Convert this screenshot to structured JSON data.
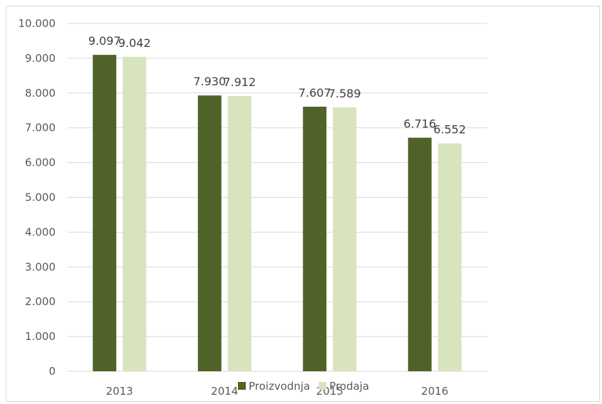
{
  "chart_data": {
    "type": "bar",
    "categories": [
      "2013",
      "2014",
      "2015",
      "2016"
    ],
    "series": [
      {
        "name": "Proizvodnja",
        "values": [
          9097,
          7930,
          7607,
          6716
        ],
        "labels": [
          "9.097",
          "7.930",
          "7.607",
          "6.716"
        ],
        "color": "#4f6228"
      },
      {
        "name": "Prodaja",
        "values": [
          9042,
          7912,
          7589,
          6552
        ],
        "labels": [
          "9.042",
          "7.912",
          "7.589",
          "6.552"
        ],
        "color": "#d7e4bd"
      }
    ],
    "ylim": [
      0,
      10000
    ],
    "yticks": [
      0,
      1000,
      2000,
      3000,
      4000,
      5000,
      6000,
      7000,
      8000,
      9000,
      10000
    ],
    "ytick_labels": [
      "0",
      "1.000",
      "2.000",
      "3.000",
      "4.000",
      "5.000",
      "6.000",
      "7.000",
      "8.000",
      "9.000",
      "10.000"
    ],
    "grid": true,
    "legend": "bottom"
  }
}
